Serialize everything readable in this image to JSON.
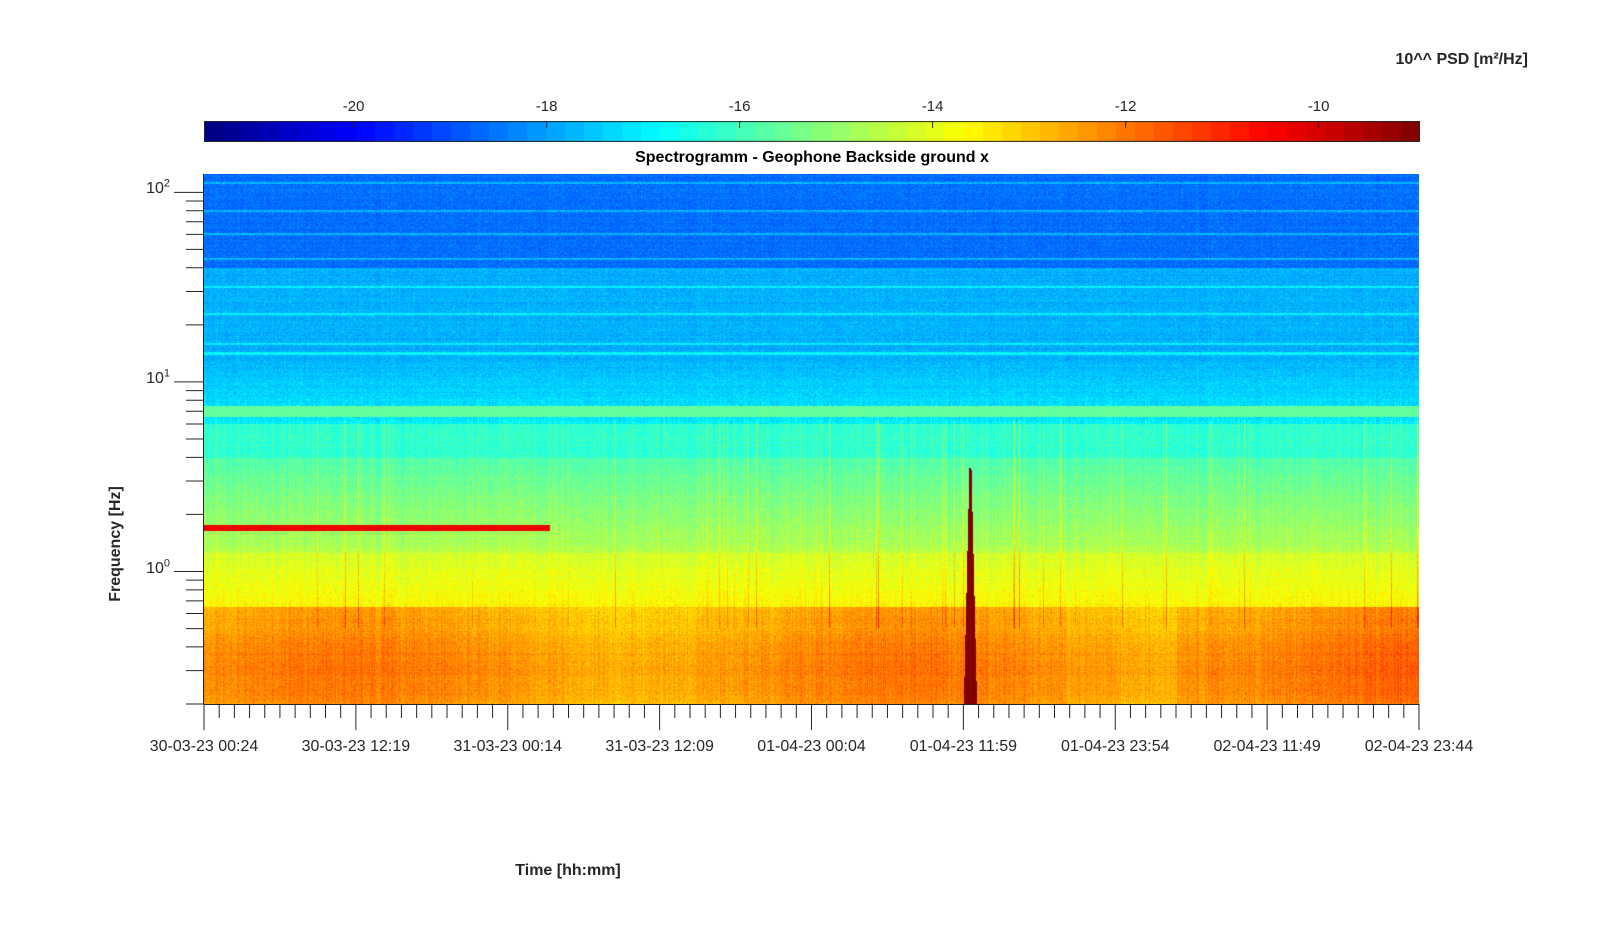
{
  "chart_data": {
    "type": "heatmap",
    "title": "Spectrogramm - Geophone Backside ground x",
    "xlabel": "Time [hh:mm]",
    "ylabel": "Frequency [Hz]",
    "x_ticks": [
      "30-03-23 00:24",
      "30-03-23 12:19",
      "31-03-23 00:14",
      "31-03-23 12:09",
      "01-04-23 00:04",
      "01-04-23 11:59",
      "01-04-23 23:54",
      "02-04-23 11:49",
      "02-04-23 23:44"
    ],
    "x_range": [
      "30-03-23 00:24",
      "02-04-23 23:44"
    ],
    "y_scale": "log",
    "y_ticks": [
      {
        "base": "10",
        "exp": "0",
        "value": 1
      },
      {
        "base": "10",
        "exp": "1",
        "value": 10
      },
      {
        "base": "10",
        "exp": "2",
        "value": 100
      }
    ],
    "y_range_hz": [
      0.2,
      125
    ],
    "colorbar": {
      "label": "10^^ PSD [m²/Hz]",
      "ticks": [
        "-20",
        "-18",
        "-16",
        "-14",
        "-12",
        "-10"
      ],
      "tick_values": [
        -20,
        -18,
        -16,
        -14,
        -12,
        -10
      ],
      "range": [
        -21.55,
        -8.95
      ],
      "colormap": "jet",
      "location": "top"
    },
    "features": [
      {
        "type": "narrowband-line",
        "freq_hz": 1.7,
        "start": "30-03-23 00:24",
        "end": "31-03-23 03:30",
        "log10_psd": -10.3
      },
      {
        "type": "transient",
        "time": "01-04-23 12:30",
        "freq_max_hz": 3.5,
        "log10_psd": -9.3
      },
      {
        "type": "broadband-band",
        "freq_hz": 7.0,
        "log10_psd": -15.6
      },
      {
        "type": "low-frequency-band",
        "freq_range_hz": [
          0.2,
          0.65
        ],
        "log10_psd": -12.5
      }
    ],
    "grid": false
  }
}
